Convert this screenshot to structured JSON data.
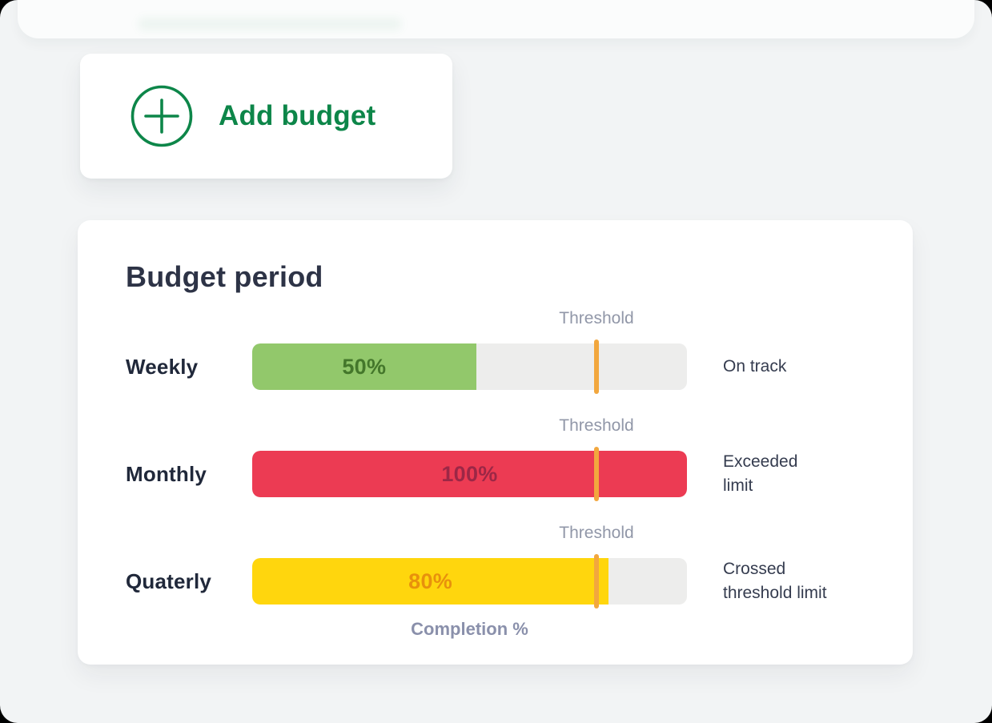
{
  "page": {
    "background_color": "#F2F4F5",
    "brand_green": "#0D8649"
  },
  "add_budget": {
    "label": "Add budget",
    "icon": "plus-circle-icon",
    "color": "#0D8649"
  },
  "budget_panel": {
    "title": "Budget period",
    "axis_label": "Completion %",
    "threshold_position_percent": 78.6,
    "threshold_color": "#F2A73E",
    "track_color": "#EDEDEC",
    "rows": [
      {
        "period": "Weekly",
        "value": 50,
        "value_label": "50%",
        "fill_percent": 51.5,
        "bar_color": "#92C86B",
        "value_text_color": "#44772B",
        "threshold_label": "Threshold",
        "status_line1": "On track",
        "status_line2": ""
      },
      {
        "period": "Monthly",
        "value": 100,
        "value_label": "100%",
        "fill_percent": 100,
        "bar_color": "#EC3B53",
        "value_text_color": "#9C2746",
        "threshold_label": "Threshold",
        "status_line1": "Exceeded",
        "status_line2": "limit"
      },
      {
        "period": "Quaterly",
        "value": 80,
        "value_label": "80%",
        "fill_percent": 82,
        "bar_color": "#FFD60D",
        "value_text_color": "#E8910C",
        "threshold_label": "Threshold",
        "status_line1": "Crossed",
        "status_line2": "threshold limit"
      }
    ]
  },
  "chart_data": {
    "type": "bar",
    "orientation": "horizontal",
    "title": "Budget period",
    "categories": [
      "Weekly",
      "Monthly",
      "Quaterly"
    ],
    "values": [
      50,
      100,
      80
    ],
    "value_labels": [
      "50%",
      "100%",
      "80%"
    ],
    "statuses": [
      "On track",
      "Exceeded limit",
      "Crossed threshold limit"
    ],
    "bar_colors": [
      "#92C86B",
      "#EC3B53",
      "#FFD60D"
    ],
    "threshold_percent": 78.6,
    "threshold_label": "Threshold",
    "xlabel": "Completion %",
    "xlim": [
      0,
      100
    ],
    "grid": false,
    "legend": false
  }
}
